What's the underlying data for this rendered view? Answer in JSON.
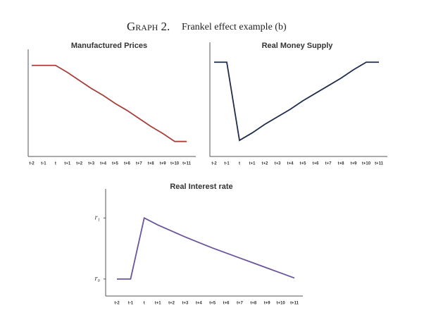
{
  "header": {
    "label": "Graph 2.",
    "caption": "Frankel effect example (b)"
  },
  "chart_data": [
    {
      "type": "line",
      "title": "Manufactured Prices",
      "categories": [
        "t-2",
        "t-1",
        "t",
        "t+1",
        "t+2",
        "t+3",
        "t+4",
        "t+5",
        "t+6",
        "t+7",
        "t+8",
        "t+9",
        "t+10",
        "t+11"
      ],
      "values": [
        91,
        91,
        91,
        84,
        76,
        68,
        61,
        53,
        46,
        38,
        30,
        23,
        15,
        15
      ],
      "color": "#a5403c",
      "ylim": [
        0,
        100
      ]
    },
    {
      "type": "line",
      "title": "Real Money Supply",
      "categories": [
        "t-2",
        "t-1",
        "t",
        "t+1",
        "t+2",
        "t+3",
        "t+4",
        "t+5",
        "t+6",
        "t+7",
        "t+8",
        "t+9",
        "t+10",
        "t+11"
      ],
      "values": [
        88,
        88,
        15,
        22,
        30,
        37,
        44,
        52,
        59,
        66,
        73,
        81,
        88,
        88
      ],
      "color": "#1f2d4a",
      "ylim": [
        0,
        100
      ]
    },
    {
      "type": "line",
      "title": "Real Interest rate",
      "categories": [
        "t-2",
        "t-1",
        "t",
        "t+1",
        "t+2",
        "t+3",
        "t+4",
        "t+5",
        "t+6",
        "t+7",
        "t+8",
        "t+9",
        "t+10",
        "t+11"
      ],
      "values": [
        17,
        17,
        78,
        71,
        65,
        59,
        53.5,
        48,
        43,
        38,
        33,
        28,
        23,
        18
      ],
      "color": "#6b559a",
      "ylim": [
        0,
        100
      ],
      "yticks": [
        {
          "value": 17,
          "label": "r₀"
        },
        {
          "value": 78,
          "label": "r₁"
        }
      ]
    }
  ]
}
